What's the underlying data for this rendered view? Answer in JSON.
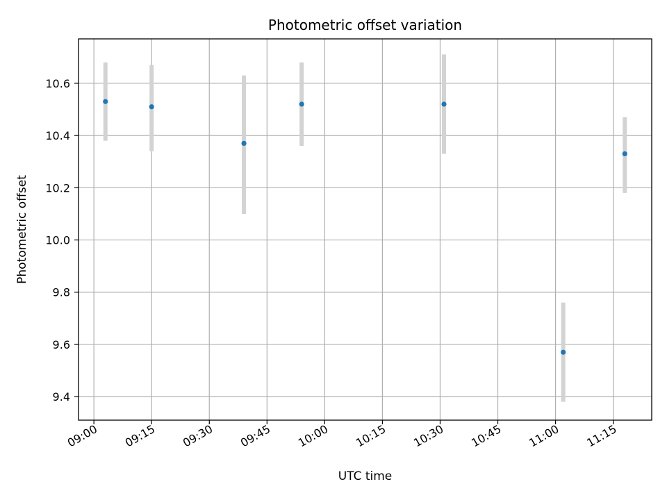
{
  "chart_data": {
    "type": "scatter",
    "title": "Photometric offset variation",
    "xlabel": "UTC time",
    "ylabel": "Photometric offset",
    "x_ticks": [
      "09:00",
      "09:15",
      "09:30",
      "09:45",
      "10:00",
      "10:15",
      "10:30",
      "10:45",
      "11:00",
      "11:15"
    ],
    "y_ticks": [
      "9.4",
      "9.6",
      "9.8",
      "10.0",
      "10.2",
      "10.4",
      "10.6"
    ],
    "xlim": [
      "08:56",
      "11:25"
    ],
    "ylim": [
      9.31,
      10.77
    ],
    "grid": true,
    "points": [
      {
        "x": "09:03",
        "y": 10.53,
        "err_low": 10.38,
        "err_high": 10.68
      },
      {
        "x": "09:15",
        "y": 10.51,
        "err_low": 10.34,
        "err_high": 10.67
      },
      {
        "x": "09:39",
        "y": 10.37,
        "err_low": 10.1,
        "err_high": 10.63
      },
      {
        "x": "09:54",
        "y": 10.52,
        "err_low": 10.36,
        "err_high": 10.68
      },
      {
        "x": "10:31",
        "y": 10.52,
        "err_low": 10.33,
        "err_high": 10.71
      },
      {
        "x": "11:02",
        "y": 9.57,
        "err_low": 9.38,
        "err_high": 9.76
      },
      {
        "x": "11:18",
        "y": 10.33,
        "err_low": 10.18,
        "err_high": 10.47
      }
    ],
    "colors": {
      "point": "#1f77b4",
      "errorbar": "#d3d3d3",
      "grid": "#b0b0b0",
      "axes": "#000000"
    }
  }
}
